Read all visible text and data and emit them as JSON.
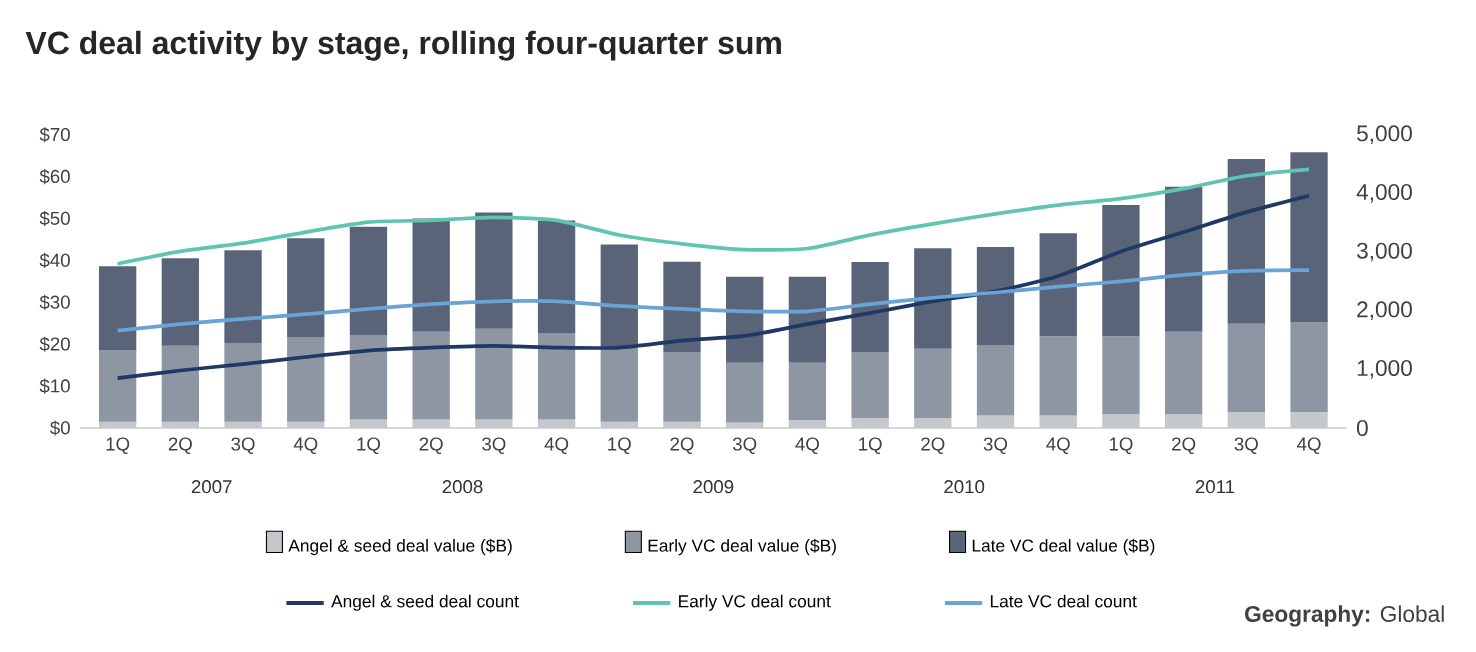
{
  "chart_data": {
    "type": "bar",
    "title": "VC deal activity by stage, rolling four-quarter sum",
    "stacked": true,
    "legend": "bottom",
    "categories": [
      "1Q",
      "2Q",
      "3Q",
      "4Q",
      "1Q",
      "2Q",
      "3Q",
      "4Q",
      "1Q",
      "2Q",
      "3Q",
      "4Q",
      "1Q",
      "2Q",
      "3Q",
      "4Q",
      "1Q",
      "2Q",
      "3Q",
      "4Q"
    ],
    "ylim": [
      0,
      70
    ],
    "yticks": [
      {
        "value": 0,
        "label": "$0"
      },
      {
        "value": 10,
        "label": "$10"
      },
      {
        "value": 20,
        "label": "$20"
      },
      {
        "value": 30,
        "label": "$30"
      },
      {
        "value": 40,
        "label": "$40"
      },
      {
        "value": 50,
        "label": "$50"
      },
      {
        "value": 60,
        "label": "$60"
      },
      {
        "value": 70,
        "label": "$70"
      }
    ],
    "y2lim": [
      0,
      5000
    ],
    "y2ticks": [
      0,
      {
        "value": 1000,
        "label": "1,000"
      },
      {
        "value": 2000,
        "label": "2,000"
      },
      {
        "value": 3000,
        "label": "3,000"
      },
      {
        "value": 4000,
        "label": "4,000"
      },
      {
        "value": 5000,
        "label": "5,000"
      }
    ],
    "series": [
      {
        "name": "Angel & seed deal value ($B)",
        "color": "#c4c7cc",
        "values": [
          1.5,
          1.5,
          1.5,
          1.5,
          2,
          2,
          2,
          2,
          1.5,
          1.5,
          1.3,
          1.9,
          2.4,
          2.4,
          3,
          3,
          3.3,
          3.3,
          3.8,
          3.8
        ]
      },
      {
        "name": "Early VC deal value ($B)",
        "color": "#8e96a3",
        "values": [
          17,
          18.1,
          18.8,
          20.1,
          20.2,
          21,
          21.7,
          20.7,
          18,
          16.5,
          14.3,
          13.7,
          15.6,
          16.5,
          16.7,
          18.9,
          18.6,
          19.7,
          21.1,
          21.4
        ]
      },
      {
        "name": "Late VC deal value ($B)",
        "color": "#5a6478",
        "values": [
          20.1,
          20.9,
          22.1,
          23.7,
          25.8,
          27,
          27.7,
          26.8,
          24.3,
          21.7,
          20.5,
          20.5,
          21.6,
          24,
          23.5,
          24.6,
          31.3,
          34.6,
          39.3,
          40.6
        ]
      },
      {
        "name": "Angel & seed deal count",
        "type": "line",
        "axis": "y2",
        "color": "#1f3864",
        "values": [
          850,
          980,
          1090,
          1210,
          1320,
          1370,
          1400,
          1370,
          1370,
          1490,
          1570,
          1770,
          1960,
          2160,
          2330,
          2590,
          3010,
          3340,
          3680,
          3960
        ]
      },
      {
        "name": "Early VC deal count",
        "type": "line",
        "axis": "y2",
        "color": "#5fc4b0",
        "values": [
          2800,
          3010,
          3150,
          3340,
          3510,
          3540,
          3590,
          3540,
          3290,
          3140,
          3040,
          3060,
          3290,
          3480,
          3650,
          3800,
          3910,
          4080,
          4300,
          4410
        ]
      },
      {
        "name": "Late VC deal count",
        "type": "line",
        "axis": "y2",
        "color": "#6aa3d5",
        "values": [
          1660,
          1770,
          1860,
          1940,
          2030,
          2110,
          2160,
          2160,
          2080,
          2030,
          1990,
          1990,
          2110,
          2220,
          2310,
          2410,
          2500,
          2610,
          2680,
          2690
        ]
      }
    ],
    "annotations": [
      "2007",
      "2008",
      "2009",
      "2010",
      "2011",
      "**Geography:** Global"
    ]
  }
}
